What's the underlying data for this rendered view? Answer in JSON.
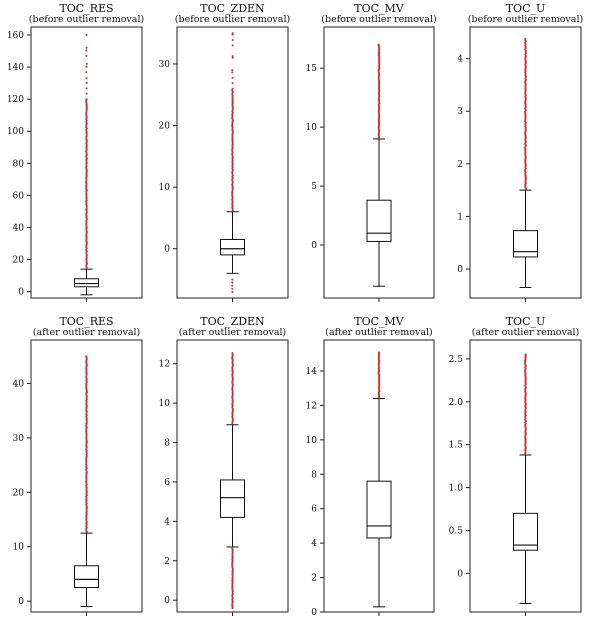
{
  "chart_data": [
    {
      "type": "box",
      "title": "TOC_RES",
      "subtitle": "(before outlier removal)",
      "ylim": [
        -4,
        165
      ],
      "yticks": [
        0,
        20,
        40,
        60,
        80,
        100,
        120,
        140,
        160
      ],
      "box": {
        "whisker_low": -2,
        "q1": 3,
        "median": 5,
        "q3": 8,
        "whisker_high": 14
      },
      "outliers_range": [
        14,
        160
      ],
      "outliers_sparse_above": 120,
      "outliers_extra": [
        133,
        142,
        152,
        160
      ]
    },
    {
      "type": "box",
      "title": "TOC_ZDEN",
      "subtitle": "(before outlier removal)",
      "ylim": [
        -8,
        36
      ],
      "yticks": [
        0,
        10,
        20,
        30
      ],
      "box": {
        "whisker_low": -4,
        "q1": -1,
        "median": 0,
        "q3": 1.5,
        "whisker_high": 6
      },
      "outliers_range": [
        6,
        35
      ],
      "outliers_sparse_above": 26,
      "outliers_low": [
        -5,
        -5.5,
        -6,
        -6.5,
        -7
      ],
      "outliers_extra": [
        29,
        31,
        33,
        35
      ]
    },
    {
      "type": "box",
      "title": "TOC_MV",
      "subtitle": "(before outlier removal)",
      "ylim": [
        -4.5,
        18.5
      ],
      "yticks": [
        0,
        5,
        10,
        15
      ],
      "box": {
        "whisker_low": -3.5,
        "q1": 0.3,
        "median": 1,
        "q3": 3.8,
        "whisker_high": 9
      },
      "outliers_range": [
        9,
        17.8
      ],
      "outliers_sparse_above": 17
    },
    {
      "type": "box",
      "title": "TOC_U",
      "subtitle": "(before outlier removal)",
      "ylim": [
        -0.55,
        4.6
      ],
      "yticks": [
        0,
        1,
        2,
        3,
        4
      ],
      "box": {
        "whisker_low": -0.35,
        "q1": 0.23,
        "median": 0.33,
        "q3": 0.73,
        "whisker_high": 1.5
      },
      "outliers_range": [
        1.5,
        4.45
      ],
      "outliers_sparse_above": 4.4
    },
    {
      "type": "box",
      "title": "TOC_RES",
      "subtitle": "(after outlier removal)",
      "ylim": [
        -2,
        48
      ],
      "yticks": [
        0,
        10,
        20,
        30,
        40
      ],
      "box": {
        "whisker_low": -1,
        "q1": 2.5,
        "median": 4,
        "q3": 6.5,
        "whisker_high": 12.5
      },
      "outliers_range": [
        12.5,
        45.5
      ],
      "outliers_sparse_above": 45
    },
    {
      "type": "box",
      "title": "TOC_ZDEN",
      "subtitle": "(after outlier removal)",
      "ylim": [
        -0.6,
        13.2
      ],
      "yticks": [
        0,
        2,
        4,
        6,
        8,
        10,
        12
      ],
      "box": {
        "whisker_low": 2.7,
        "q1": 4.2,
        "median": 5.2,
        "q3": 6.1,
        "whisker_high": 8.9
      },
      "outliers_range": [
        8.9,
        12.7
      ],
      "outliers_sparse_above": 12.6,
      "outliers_low_range": [
        -0.4,
        2.7
      ]
    },
    {
      "type": "box",
      "title": "TOC_MV",
      "subtitle": "(after outlier removal)",
      "ylim": [
        0,
        15.8
      ],
      "yticks": [
        0,
        2,
        4,
        6,
        8,
        10,
        12,
        14
      ],
      "box": {
        "whisker_low": 0.3,
        "q1": 4.3,
        "median": 5,
        "q3": 7.6,
        "whisker_high": 12.4
      },
      "outliers_range": [
        12.4,
        15.2
      ],
      "outliers_sparse_above": 15.1
    },
    {
      "type": "box",
      "title": "TOC_U",
      "subtitle": "(after outlier removal)",
      "ylim": [
        -0.45,
        2.72
      ],
      "yticks": [
        0,
        0.5,
        1.0,
        1.5,
        2.0,
        2.5
      ],
      "ytick_labels": [
        "0",
        "0.5",
        "1.0",
        "1.5",
        "2.0",
        "2.5"
      ],
      "box": {
        "whisker_low": -0.35,
        "q1": 0.27,
        "median": 0.33,
        "q3": 0.7,
        "whisker_high": 1.38
      },
      "outliers_range": [
        1.38,
        2.57
      ],
      "outliers_sparse_above": 2.55
    }
  ],
  "colors": {
    "outlier": "#c8322f",
    "frame": "#222222",
    "box": "#111111"
  }
}
